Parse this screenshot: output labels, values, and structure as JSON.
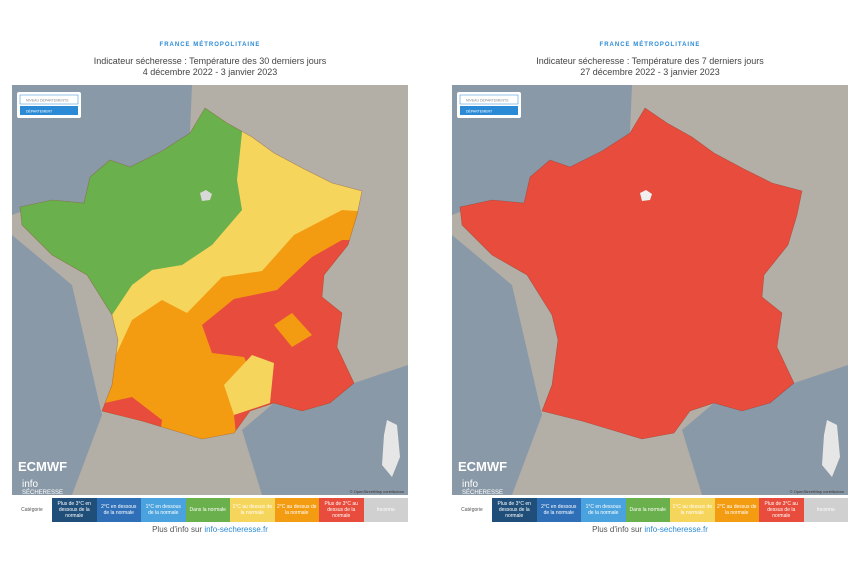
{
  "panels": [
    {
      "header": "FRANCE MÉTROPOLITAINE",
      "title": "Indicateur sécheresse : Température des 30 derniers jours",
      "dates": "4 décembre 2022 - 3 janvier 2023",
      "buttons": [
        "NIVEAU DÉPARTEMENTS",
        "DÉPARTEMENT"
      ],
      "logo": "ECMWF",
      "brand_top": "info",
      "brand_bottom": "SÉCHERESSE",
      "attribution": "© OpenStreetMap contributors",
      "legend_label": "Catégorie",
      "legend": [
        "Plus de 3°C en dessous de la normale",
        "2°C en dessous de la normale",
        "1°C en dessous de la normale",
        "Dans la normale",
        "1°C au dessus de la normale",
        "2°C au dessus de la normale",
        "Plus de 3°C au dessus de la normale",
        "Inconnu"
      ],
      "footer_prefix": "Plus d'info sur",
      "footer_link": "info-secheresse.fr"
    },
    {
      "header": "FRANCE MÉTROPOLITAINE",
      "title": "Indicateur sécheresse : Température des 7 derniers jours",
      "dates": "27 décembre 2022 - 3 janvier 2023",
      "buttons": [
        "NIVEAU DÉPARTEMENTS",
        "DÉPARTEMENT"
      ],
      "logo": "ECMWF",
      "brand_top": "info",
      "brand_bottom": "SÉCHERESSE",
      "attribution": "© OpenStreetMap contributors",
      "legend_label": "Catégorie",
      "legend": [
        "Plus de 3°C en dessous de la normale",
        "2°C en dessous de la normale",
        "1°C en dessous de la normale",
        "Dans la normale",
        "1°C au dessus de la normale",
        "2°C au dessus de la normale",
        "Plus de 3°C au dessus de la normale",
        "Inconnu"
      ],
      "footer_prefix": "Plus d'info sur",
      "footer_link": "info-secheresse.fr"
    }
  ]
}
